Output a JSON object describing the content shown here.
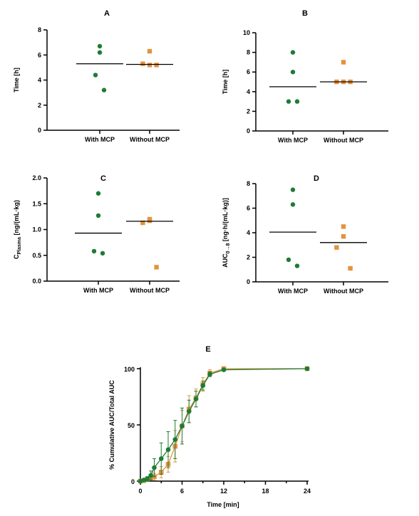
{
  "colors": {
    "with_mcp": "#1e7b35",
    "without_mcp": "#e3933d"
  },
  "chart_data": [
    {
      "panel": "A",
      "type": "scatter",
      "title": "A",
      "xlabel": "",
      "ylabel": "Time [h]",
      "categories": [
        "With MCP",
        "Without MCP"
      ],
      "ylim": [
        0,
        8
      ],
      "yticks": [
        0,
        2,
        4,
        6,
        8
      ],
      "ytick_labels": [
        "0",
        "2",
        "4",
        "6",
        "8"
      ],
      "series": [
        {
          "category": "With MCP",
          "marker": "circle",
          "values": [
            6.7,
            6.2,
            4.4,
            3.2
          ],
          "mean": 5.3
        },
        {
          "category": "Without MCP",
          "marker": "square",
          "values": [
            6.3,
            5.2,
            5.3,
            5.2
          ],
          "mean": 5.25
        }
      ]
    },
    {
      "panel": "B",
      "type": "scatter",
      "title": "B",
      "xlabel": "",
      "ylabel": "Time [h]",
      "categories": [
        "With MCP",
        "Without MCP"
      ],
      "ylim": [
        0,
        10
      ],
      "yticks": [
        0,
        2,
        4,
        6,
        8,
        10
      ],
      "ytick_labels": [
        "0",
        "2",
        "4",
        "6",
        "8",
        "10"
      ],
      "series": [
        {
          "category": "With MCP",
          "marker": "circle",
          "values": [
            8,
            6,
            3,
            3
          ],
          "mean": 4.5
        },
        {
          "category": "Without MCP",
          "marker": "square",
          "values": [
            7,
            5,
            5,
            5
          ],
          "mean": 5.0
        }
      ]
    },
    {
      "panel": "C",
      "type": "scatter",
      "title": "C",
      "xlabel": "",
      "ylabel": "C",
      "ylabel_sub": "Plasma",
      "ylabel_rest": " [ng/(mL·kg)",
      "categories": [
        "With MCP",
        "Without MCP"
      ],
      "ylim": [
        0,
        2.0
      ],
      "yticks": [
        0,
        0.5,
        1.0,
        1.5,
        2.0
      ],
      "ytick_labels": [
        "0.0",
        "0.5",
        "1.0",
        "1.5",
        "2.0"
      ],
      "series": [
        {
          "category": "With MCP",
          "marker": "circle",
          "values": [
            1.7,
            1.27,
            0.58,
            0.54
          ],
          "mean": 0.93
        },
        {
          "category": "Without MCP",
          "marker": "square",
          "values": [
            1.2,
            1.17,
            1.13,
            0.27
          ],
          "mean": 1.16
        }
      ]
    },
    {
      "panel": "D",
      "type": "scatter",
      "title": "D",
      "xlabel": "",
      "ylabel": "AUC",
      "ylabel_sub": "0→8",
      "ylabel_rest": " [ng·h/(mL·kg)]",
      "categories": [
        "With MCP",
        "Without MCP"
      ],
      "ylim": [
        0,
        8
      ],
      "yticks": [
        0,
        2,
        4,
        6,
        8
      ],
      "ytick_labels": [
        "0",
        "2",
        "4",
        "6",
        "8"
      ],
      "series": [
        {
          "category": "With MCP",
          "marker": "circle",
          "values": [
            7.5,
            6.3,
            1.8,
            1.3
          ],
          "mean": 4.05
        },
        {
          "category": "Without MCP",
          "marker": "square",
          "values": [
            4.5,
            3.7,
            2.8,
            1.1
          ],
          "mean": 3.2
        }
      ]
    },
    {
      "panel": "E",
      "type": "line",
      "title": "E",
      "xlabel": "Time [min]",
      "ylabel": "% Cumulative AUC/Total  AUC",
      "xlim": [
        0,
        24
      ],
      "ylim": [
        0,
        100
      ],
      "xticks": [
        0,
        6,
        12,
        18,
        24
      ],
      "xtick_labels": [
        "0",
        "6",
        "12",
        "18",
        "24"
      ],
      "yticks": [
        0,
        50,
        100
      ],
      "ytick_labels": [
        "0",
        "50",
        "100"
      ],
      "series": [
        {
          "marker": "square",
          "x": [
            0,
            0.5,
            1,
            1.5,
            2,
            3,
            4,
            5,
            6,
            7,
            8,
            9,
            10,
            12,
            24
          ],
          "y": [
            0,
            0.5,
            2,
            3,
            4,
            8,
            15,
            31,
            49,
            64,
            74,
            86,
            96,
            100,
            100
          ],
          "err": [
            0,
            0.5,
            1,
            2,
            3,
            5,
            7,
            14,
            14,
            12,
            8,
            6,
            3,
            1,
            1
          ]
        },
        {
          "marker": "circle",
          "x": [
            0,
            0.5,
            1,
            1.5,
            2,
            3,
            4,
            5,
            6,
            7,
            8,
            9,
            10,
            12,
            24
          ],
          "y": [
            0,
            1,
            2,
            5,
            12,
            20,
            28,
            37,
            49,
            62,
            73,
            85,
            95,
            99,
            100
          ],
          "err": [
            0,
            1,
            2,
            4,
            8,
            14,
            16,
            17,
            16,
            10,
            7,
            4,
            2,
            1,
            1
          ]
        }
      ]
    }
  ]
}
